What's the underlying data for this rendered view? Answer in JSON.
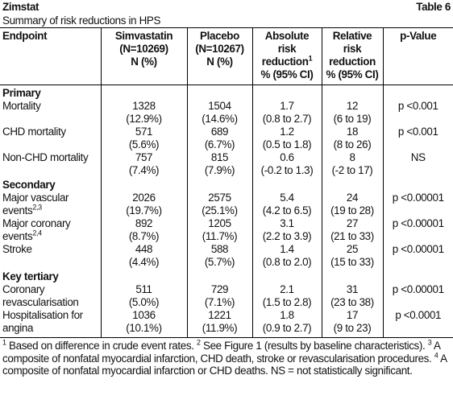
{
  "header": {
    "title": "Zimstat",
    "table_label": "Table 6",
    "subtitle": "Summary of risk reductions in HPS"
  },
  "table": {
    "columns": [
      {
        "lines": [
          "Endpoint"
        ]
      },
      {
        "lines": [
          "Simvastatin",
          "(N=10269)",
          "N (%)"
        ]
      },
      {
        "lines": [
          "Placebo",
          "(N=10267)",
          "N (%)"
        ]
      },
      {
        "lines": [
          "Absolute",
          "risk",
          "reduction",
          "% (95% CI)"
        ],
        "sup": "1",
        "sup_line": 2
      },
      {
        "lines": [
          "Relative",
          "risk",
          "reduction",
          "% (95% CI)"
        ]
      },
      {
        "lines": [
          "p-Value"
        ]
      }
    ],
    "sections": [
      {
        "title": "Primary",
        "rows": [
          {
            "endpoint": [
              "Mortality"
            ],
            "simvastatin": [
              "1328",
              "(12.9%)"
            ],
            "placebo": [
              "1504",
              "(14.6%)"
            ],
            "absolute": [
              "1.7",
              "(0.8 to 2.7)"
            ],
            "relative": [
              "12",
              "(6 to 19)"
            ],
            "p": "p <0.001"
          },
          {
            "endpoint": [
              "CHD mortality"
            ],
            "simvastatin": [
              "571",
              "(5.6%)"
            ],
            "placebo": [
              "689",
              "(6.7%)"
            ],
            "absolute": [
              "1.2",
              "(0.5 to 1.8)"
            ],
            "relative": [
              "18",
              "(8 to 26)"
            ],
            "p": "p <0.001"
          },
          {
            "endpoint": [
              "Non-CHD mortality"
            ],
            "simvastatin": [
              "757",
              "(7.4%)"
            ],
            "placebo": [
              "815",
              "(7.9%)"
            ],
            "absolute": [
              "0.6",
              "(-0.2 to 1.3)"
            ],
            "relative": [
              "8",
              "(-2 to 17)"
            ],
            "p": "NS"
          }
        ]
      },
      {
        "title": "Secondary",
        "rows": [
          {
            "endpoint": [
              "Major vascular",
              "events"
            ],
            "endpoint_sup": "2,3",
            "simvastatin": [
              "2026",
              "(19.7%)"
            ],
            "placebo": [
              "2575",
              "(25.1%)"
            ],
            "absolute": [
              "5.4",
              "(4.2 to 6.5)"
            ],
            "relative": [
              "24",
              "(19 to 28)"
            ],
            "p": "p <0.00001"
          },
          {
            "endpoint": [
              "Major coronary",
              "events"
            ],
            "endpoint_sup": "2,4",
            "simvastatin": [
              "892",
              "(8.7%)"
            ],
            "placebo": [
              "1205",
              "(11.7%)"
            ],
            "absolute": [
              "3.1",
              "(2.2 to 3.9)"
            ],
            "relative": [
              "27",
              "(21 to 33)"
            ],
            "p": "p <0.00001"
          },
          {
            "endpoint": [
              "Stroke"
            ],
            "simvastatin": [
              "448",
              "(4.4%)"
            ],
            "placebo": [
              "588",
              "(5.7%)"
            ],
            "absolute": [
              "1.4",
              "(0.8 to 2.0)"
            ],
            "relative": [
              "25",
              "(15 to 33)"
            ],
            "p": "p <0.00001"
          }
        ]
      },
      {
        "title": "Key tertiary",
        "rows": [
          {
            "endpoint": [
              "Coronary",
              "revascularisation"
            ],
            "simvastatin": [
              "511",
              "(5.0%)"
            ],
            "placebo": [
              "729",
              "(7.1%)"
            ],
            "absolute": [
              "2.1",
              "(1.5 to 2.8)"
            ],
            "relative": [
              "31",
              "(23 to 38)"
            ],
            "p": "p <0.00001"
          },
          {
            "endpoint": [
              "Hospitalisation for",
              "angina"
            ],
            "simvastatin": [
              "1036",
              "(10.1%)"
            ],
            "placebo": [
              "1221",
              "(11.9%)"
            ],
            "absolute": [
              "1.8",
              "(0.9 to 2.7)"
            ],
            "relative": [
              "17",
              "(9 to 23)"
            ],
            "p": "p <0.0001"
          }
        ]
      }
    ]
  },
  "footnotes": [
    {
      "sup": "1",
      "text": " Based on difference in crude event rates. "
    },
    {
      "sup": "2",
      "text": " See Figure 1 (results by baseline characteristics). "
    },
    {
      "sup": "3",
      "text": " A composite of nonfatal myocardial infarction, CHD death, stroke or revascularisation procedures. "
    },
    {
      "sup": "4",
      "text": " A composite of nonfatal myocardial infarction or CHD deaths. NS = not statistically significant."
    }
  ]
}
